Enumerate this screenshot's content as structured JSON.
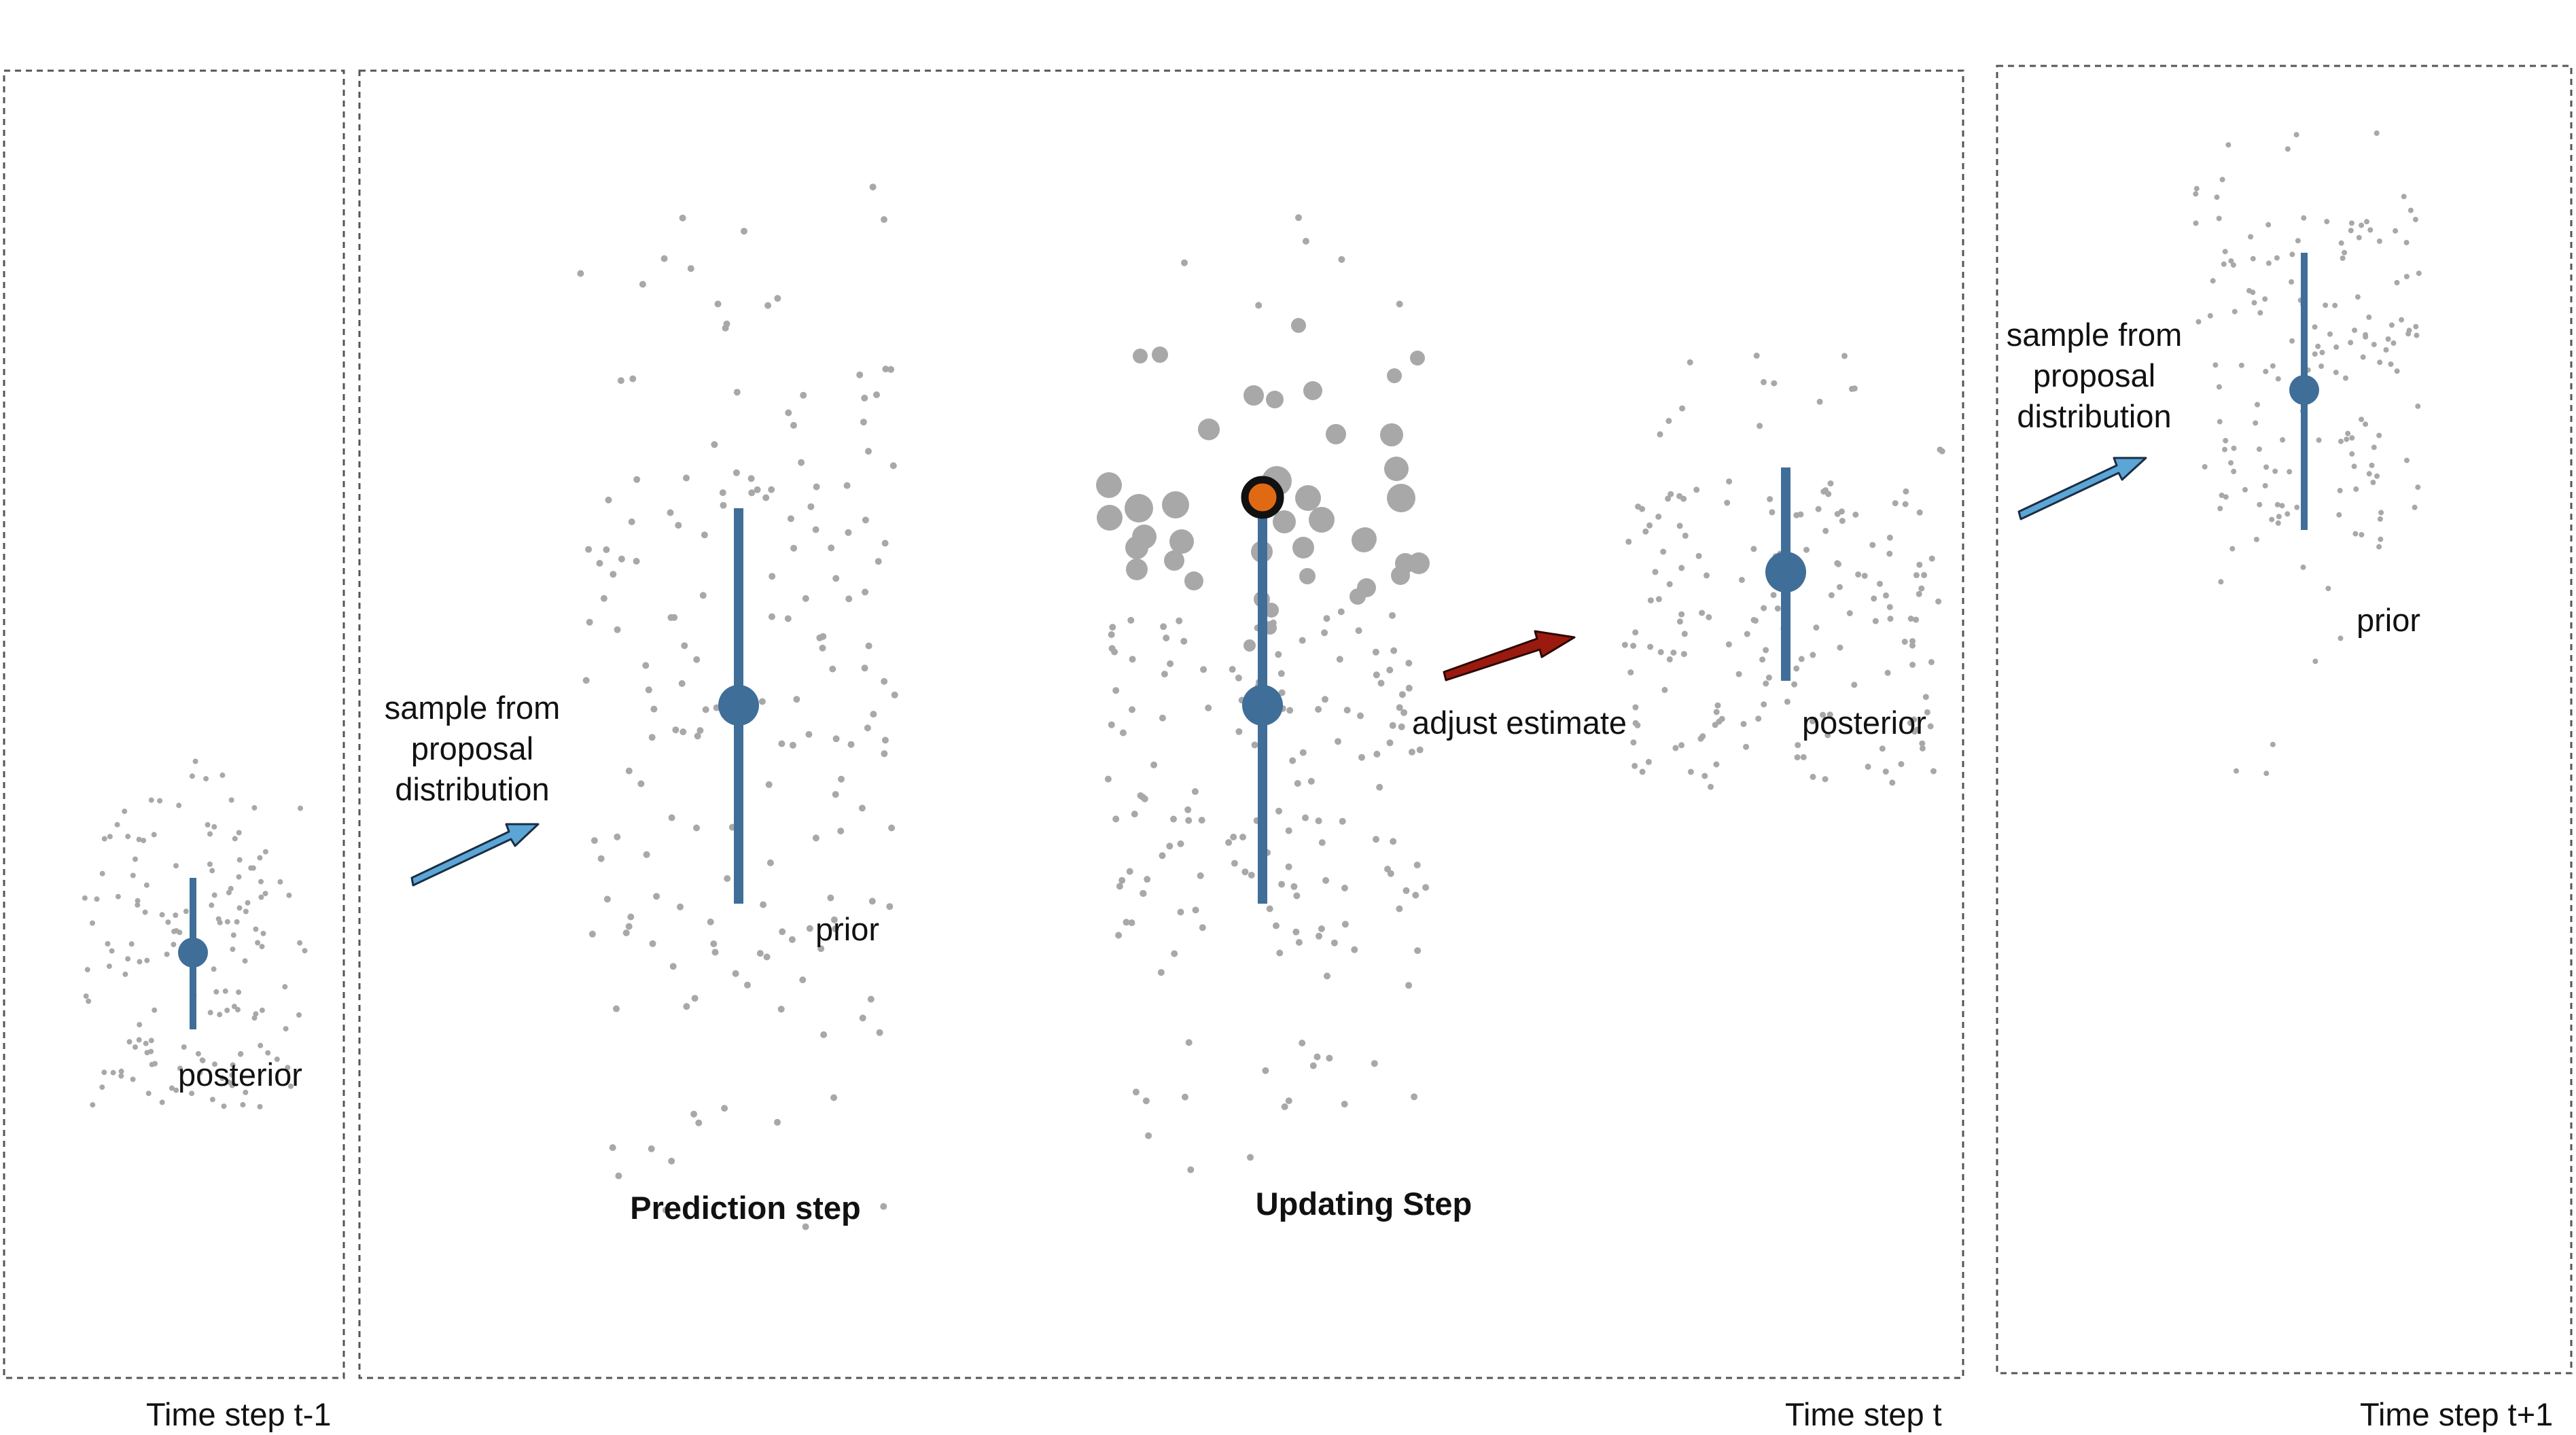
{
  "panels": [
    {
      "id": "t-minus-1",
      "label": "Time step t-1"
    },
    {
      "id": "t",
      "label": "Time step t"
    },
    {
      "id": "t-plus-1",
      "label": "Time step t+1"
    }
  ],
  "labels": {
    "posterior": "posterior",
    "prior": "prior",
    "sample_from_proposal": "sample from\nproposal\ndistribution",
    "adjust_estimate": "adjust estimate",
    "prediction_step": "Prediction step",
    "updating_step": "Updating Step"
  },
  "colors": {
    "particle": "#a8a8a8",
    "estimate": "#3f6e98",
    "blue_arrow": "#5ba6d6",
    "red_arrow": "#9b1a0f",
    "observation": "#e06a14",
    "panel_border": "#555555"
  },
  "icons": {
    "proposal_arrow": "arrow-up-right-icon",
    "adjust_arrow": "arrow-up-right-icon",
    "observation": "filled-circle-icon"
  }
}
